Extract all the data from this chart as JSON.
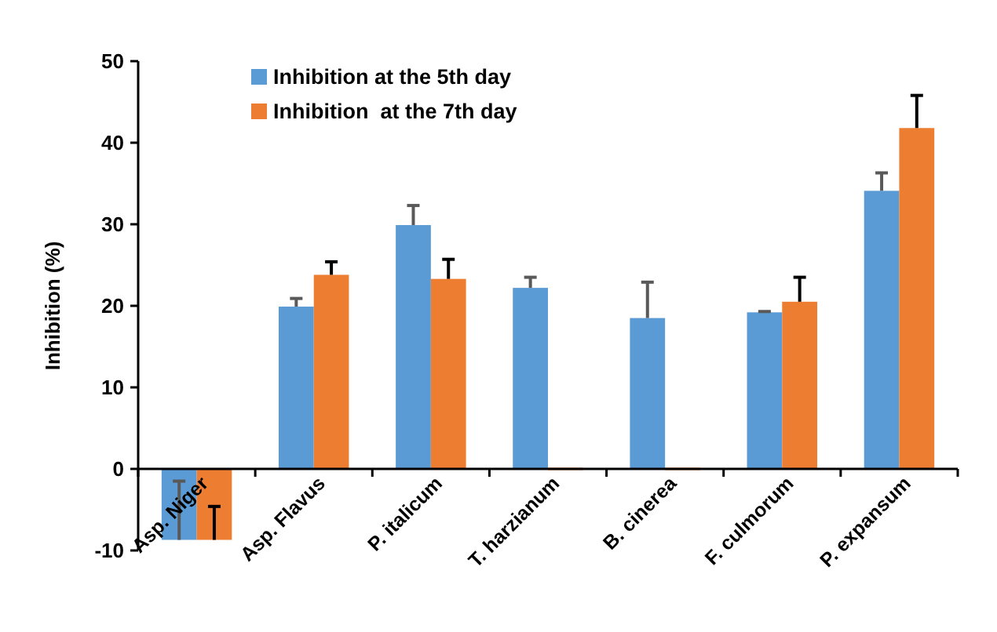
{
  "chart_data": {
    "type": "bar",
    "ylabel": "Inhibition (%)",
    "categories": [
      "Asp. Niger",
      "Asp. Flavus",
      "P. italicum",
      "T. harzianum",
      "B. cinerea",
      "F. culmorum",
      "P. expansum"
    ],
    "series": [
      {
        "name": "Inhibition at the 5th day",
        "color": "#5b9bd5",
        "values": [
          -8.7,
          19.9,
          29.9,
          22.2,
          18.5,
          19.2,
          34.1
        ],
        "errors": [
          [
            -8.7,
            -1.5
          ],
          [
            19.9,
            20.9
          ],
          [
            29.9,
            32.3
          ],
          [
            22.2,
            23.5
          ],
          [
            18.5,
            22.9
          ],
          [
            19.2,
            19.3
          ],
          [
            34.1,
            36.3
          ]
        ]
      },
      {
        "name": "Inhibition  at the 7th day",
        "color": "#ed7d31",
        "values": [
          -8.7,
          23.8,
          23.3,
          0,
          0,
          20.5,
          41.8
        ],
        "errors": [
          [
            -8.7,
            -4.6
          ],
          [
            23.8,
            25.4
          ],
          [
            23.3,
            25.7
          ],
          null,
          null,
          [
            20.5,
            23.5
          ],
          [
            41.8,
            45.8
          ]
        ]
      }
    ],
    "ylim": [
      -10,
      50
    ],
    "yticks": [
      -10,
      0,
      10,
      20,
      30,
      40,
      50
    ],
    "grid": false,
    "legend": "top left"
  }
}
